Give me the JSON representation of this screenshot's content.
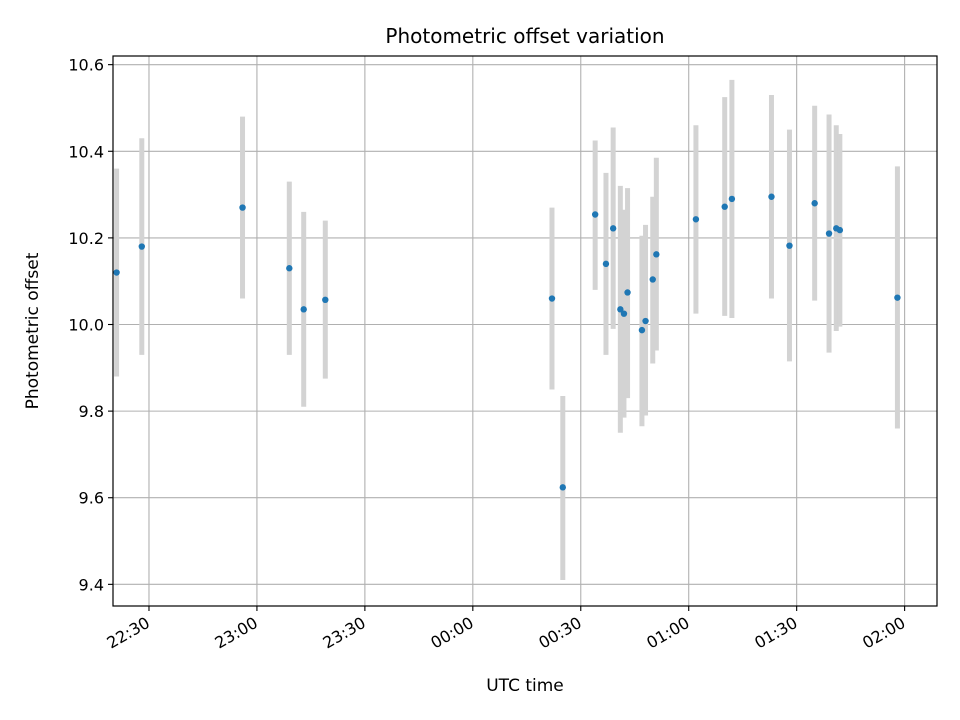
{
  "chart_data": {
    "type": "scatter",
    "title": "Photometric offset variation",
    "xlabel": "UTC time",
    "ylabel": "Photometric offset",
    "xlim": [
      "22:20",
      "02:09"
    ],
    "ylim": [
      9.35,
      10.62
    ],
    "grid": true,
    "legend": "none",
    "x_ticks": [
      {
        "time": "22:30",
        "label": "22:30"
      },
      {
        "time": "23:00",
        "label": "23:00"
      },
      {
        "time": "23:30",
        "label": "23:30"
      },
      {
        "time": "00:00",
        "label": "00:00"
      },
      {
        "time": "00:30",
        "label": "00:30"
      },
      {
        "time": "01:00",
        "label": "01:00"
      },
      {
        "time": "01:30",
        "label": "01:30"
      },
      {
        "time": "02:00",
        "label": "02:00"
      }
    ],
    "y_ticks": [
      {
        "value": 9.4,
        "label": "9.4"
      },
      {
        "value": 9.6,
        "label": "9.6"
      },
      {
        "value": 9.8,
        "label": "9.8"
      },
      {
        "value": 10.0,
        "label": "10.0"
      },
      {
        "value": 10.2,
        "label": "10.2"
      },
      {
        "value": 10.4,
        "label": "10.4"
      },
      {
        "value": 10.6,
        "label": "10.6"
      }
    ],
    "point_color": "#1f77b4",
    "errorbar_color": "#d3d3d3",
    "points": [
      {
        "time": "22:21",
        "y": 10.12,
        "ymin": 9.88,
        "ymax": 10.36
      },
      {
        "time": "22:28",
        "y": 10.18,
        "ymin": 9.93,
        "ymax": 10.43
      },
      {
        "time": "22:56",
        "y": 10.27,
        "ymin": 10.06,
        "ymax": 10.48
      },
      {
        "time": "23:09",
        "y": 10.13,
        "ymin": 9.93,
        "ymax": 10.33
      },
      {
        "time": "23:13",
        "y": 10.035,
        "ymin": 9.81,
        "ymax": 10.26
      },
      {
        "time": "23:19",
        "y": 10.057,
        "ymin": 9.875,
        "ymax": 10.24
      },
      {
        "time": "00:22",
        "y": 10.06,
        "ymin": 9.85,
        "ymax": 10.27
      },
      {
        "time": "00:25",
        "y": 9.624,
        "ymin": 9.41,
        "ymax": 9.835
      },
      {
        "time": "00:34",
        "y": 10.254,
        "ymin": 10.08,
        "ymax": 10.425
      },
      {
        "time": "00:37",
        "y": 10.14,
        "ymin": 9.93,
        "ymax": 10.35
      },
      {
        "time": "00:39",
        "y": 10.222,
        "ymin": 9.99,
        "ymax": 10.455
      },
      {
        "time": "00:41",
        "y": 10.035,
        "ymin": 9.75,
        "ymax": 10.32
      },
      {
        "time": "00:42",
        "y": 10.025,
        "ymin": 9.785,
        "ymax": 10.265
      },
      {
        "time": "00:43",
        "y": 10.074,
        "ymin": 9.83,
        "ymax": 10.315
      },
      {
        "time": "00:47",
        "y": 9.987,
        "ymin": 9.765,
        "ymax": 10.205
      },
      {
        "time": "00:48",
        "y": 10.008,
        "ymin": 9.79,
        "ymax": 10.23
      },
      {
        "time": "00:50",
        "y": 10.104,
        "ymin": 9.91,
        "ymax": 10.295
      },
      {
        "time": "00:51",
        "y": 10.162,
        "ymin": 9.94,
        "ymax": 10.385
      },
      {
        "time": "01:02",
        "y": 10.243,
        "ymin": 10.025,
        "ymax": 10.46
      },
      {
        "time": "01:10",
        "y": 10.272,
        "ymin": 10.02,
        "ymax": 10.525
      },
      {
        "time": "01:12",
        "y": 10.29,
        "ymin": 10.015,
        "ymax": 10.565
      },
      {
        "time": "01:23",
        "y": 10.295,
        "ymin": 10.06,
        "ymax": 10.53
      },
      {
        "time": "01:28",
        "y": 10.182,
        "ymin": 9.915,
        "ymax": 10.45
      },
      {
        "time": "01:35",
        "y": 10.28,
        "ymin": 10.055,
        "ymax": 10.505
      },
      {
        "time": "01:39",
        "y": 10.21,
        "ymin": 9.935,
        "ymax": 10.485
      },
      {
        "time": "01:41",
        "y": 10.222,
        "ymin": 9.985,
        "ymax": 10.46
      },
      {
        "time": "01:42",
        "y": 10.218,
        "ymin": 9.995,
        "ymax": 10.44
      },
      {
        "time": "01:58",
        "y": 10.062,
        "ymin": 9.76,
        "ymax": 10.365
      }
    ]
  }
}
